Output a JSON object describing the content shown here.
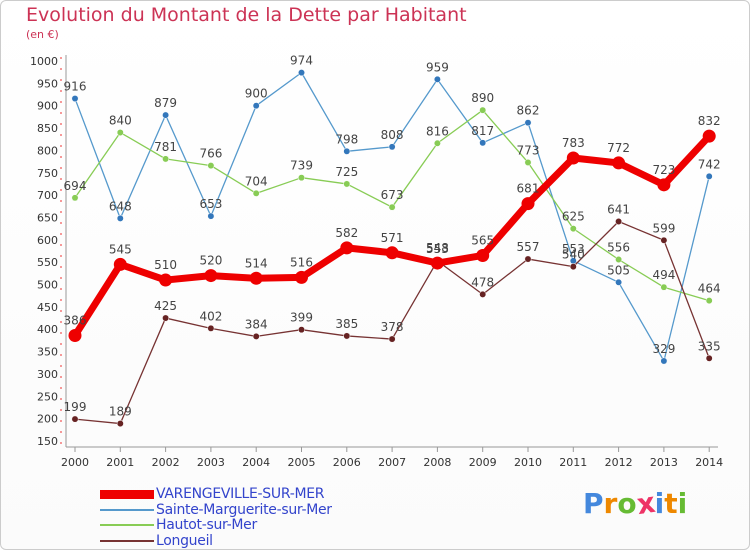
{
  "title": "Evolution du Montant de la Dette par Habitant",
  "subtitle": "(en €)",
  "chart_data": {
    "type": "line",
    "x": [
      "2000",
      "2001",
      "2002",
      "2003",
      "2004",
      "2005",
      "2006",
      "2007",
      "2008",
      "2009",
      "2010",
      "2011",
      "2012",
      "2013",
      "2014"
    ],
    "ylim": [
      150,
      1000
    ],
    "yticks": [
      150,
      200,
      250,
      300,
      350,
      400,
      450,
      500,
      550,
      600,
      650,
      700,
      750,
      800,
      850,
      900,
      950,
      1000
    ],
    "grid": false,
    "legend_position": "bottom-left",
    "series": [
      {
        "name": "Sainte-Marguerite-sur-Mer",
        "color": "#5599cc",
        "marker": "#3377bb",
        "values": [
          916,
          648,
          879,
          653,
          900,
          974,
          798,
          808,
          959,
          817,
          862,
          553,
          505,
          329,
          742
        ],
        "labels": [
          "916",
          "648",
          "879",
          "653",
          "900",
          "974",
          "798",
          "808",
          "959",
          "817",
          "862",
          "553",
          "505",
          "329",
          "742"
        ]
      },
      {
        "name": "Hautot-sur-Mer",
        "color": "#88cc55",
        "marker": "#88cc55",
        "values": [
          694,
          840,
          781,
          766,
          704,
          739,
          725,
          673,
          816,
          890,
          773,
          625,
          556,
          494,
          464
        ],
        "labels": [
          "694",
          "840",
          "781",
          "766",
          "704",
          "739",
          "725",
          "673",
          "816",
          "890",
          "773",
          "625",
          "556",
          "494",
          "464"
        ]
      },
      {
        "name": "Longueil",
        "color": "#773333",
        "marker": "#662222",
        "values": [
          199,
          189,
          425,
          402,
          384,
          399,
          385,
          378,
          553,
          478,
          557,
          540,
          641,
          599,
          335
        ],
        "labels": [
          "199",
          "189",
          "425",
          "402",
          "384",
          "399",
          "385",
          "378",
          "553",
          "478",
          "557",
          "540",
          "641",
          "599",
          "335"
        ]
      },
      {
        "name": "VARENGEVILLE-SUR-MER",
        "color": "#ee0000",
        "marker": "#ee0000",
        "values": [
          386,
          545,
          510,
          520,
          514,
          516,
          582,
          571,
          548,
          565,
          681,
          783,
          772,
          723,
          832
        ],
        "labels": [
          "386",
          "545",
          "510",
          "520",
          "514",
          "516",
          "582",
          "571",
          "548",
          "565",
          "681",
          "783",
          "772",
          "723",
          "832"
        ]
      }
    ]
  },
  "legend": [
    {
      "label": "VARENGEVILLE-SUR-MER",
      "color": "#ee0000",
      "thickness": "thick"
    },
    {
      "label": "Sainte-Marguerite-sur-Mer",
      "color": "#5599cc",
      "thickness": "thin"
    },
    {
      "label": "Hautot-sur-Mer",
      "color": "#88cc55",
      "thickness": "thin"
    },
    {
      "label": "Longueil",
      "color": "#773333",
      "thickness": "thin"
    }
  ],
  "logo": {
    "text": "Proxiti",
    "colors": [
      "#4488dd",
      "#ee8800",
      "#66bb33",
      "#ee3366",
      "#4488dd",
      "#ee8800",
      "#66bb33"
    ]
  }
}
